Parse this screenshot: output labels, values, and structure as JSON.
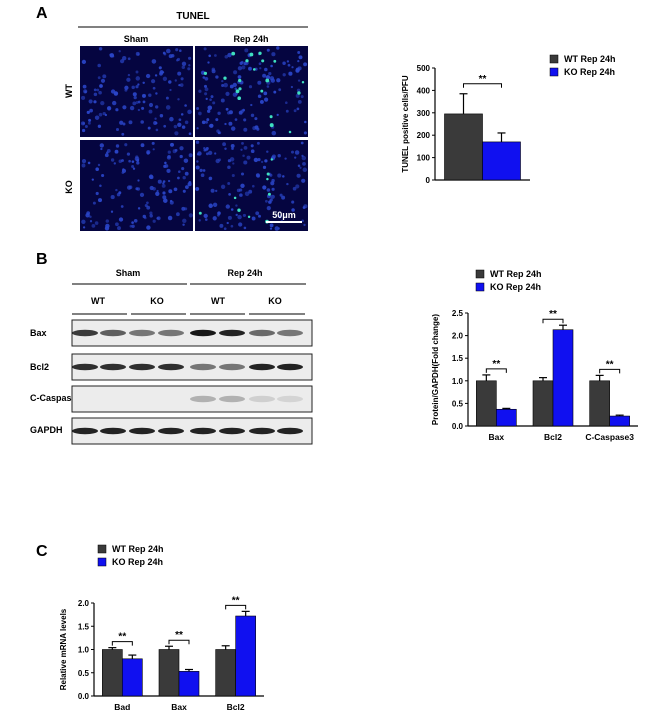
{
  "panels": {
    "a": "A",
    "b": "B",
    "c": "C"
  },
  "colors": {
    "wt": "#3a3a3a",
    "ko": "#1010f0",
    "micrograph_bg": "#050540",
    "nuclei": "#2a45c8",
    "tunel_pos": "#3ee0c0"
  },
  "tunel": {
    "header": "TUNEL",
    "col_labels": [
      "Sham",
      "Rep 24h"
    ],
    "row_labels": [
      "WT",
      "KO"
    ],
    "scale_bar": "50μm"
  },
  "blot": {
    "group_labels": [
      "Sham",
      "Rep 24h"
    ],
    "genotype_labels": [
      "WT",
      "KO",
      "WT",
      "KO"
    ],
    "rows": [
      "Bax",
      "Bcl2",
      "C-Caspase3",
      "GAPDH"
    ],
    "band_intensity": {
      "Bax": [
        0.75,
        0.6,
        0.5,
        0.5,
        0.9,
        0.85,
        0.55,
        0.5
      ],
      "Bcl2": [
        0.8,
        0.8,
        0.8,
        0.8,
        0.5,
        0.5,
        0.85,
        0.85
      ],
      "C-Caspase3": [
        0.0,
        0.0,
        0.0,
        0.0,
        0.25,
        0.25,
        0.12,
        0.1
      ],
      "GAPDH": [
        0.85,
        0.85,
        0.85,
        0.85,
        0.85,
        0.85,
        0.85,
        0.85
      ]
    }
  },
  "chart_data": [
    {
      "id": "A",
      "type": "bar",
      "categories": [
        ""
      ],
      "series": [
        {
          "name": "WT Rep 24h",
          "values": [
            295
          ],
          "errors": [
            90
          ]
        },
        {
          "name": "KO Rep 24h",
          "values": [
            170
          ],
          "errors": [
            40
          ]
        }
      ],
      "ylabel": "TUNEL positive cells/PFU",
      "ylim": [
        0,
        500
      ],
      "yticks": [
        0,
        100,
        200,
        300,
        400,
        500
      ],
      "significance": [
        "**"
      ],
      "legend": "top-right"
    },
    {
      "id": "B",
      "type": "bar",
      "categories": [
        "Bax",
        "Bcl2",
        "C-Caspase3"
      ],
      "series": [
        {
          "name": "WT Rep 24h",
          "values": [
            1.0,
            1.0,
            1.0
          ],
          "errors": [
            0.13,
            0.07,
            0.12
          ]
        },
        {
          "name": "KO Rep 24h",
          "values": [
            0.37,
            2.13,
            0.22
          ],
          "errors": [
            0.02,
            0.1,
            0.02
          ]
        }
      ],
      "ylabel": "Protein/GAPDH(Fold change)",
      "ylim": [
        0,
        2.5
      ],
      "yticks": [
        0.0,
        0.5,
        1.0,
        1.5,
        2.0,
        2.5
      ],
      "significance": [
        "**",
        "**",
        "**"
      ],
      "legend": "top-left"
    },
    {
      "id": "C",
      "type": "bar",
      "categories": [
        "Bad",
        "Bax",
        "Bcl2"
      ],
      "series": [
        {
          "name": "WT Rep 24h",
          "values": [
            1.0,
            1.0,
            1.0
          ],
          "errors": [
            0.04,
            0.07,
            0.08
          ]
        },
        {
          "name": "KO Rep 24h",
          "values": [
            0.8,
            0.53,
            1.72
          ],
          "errors": [
            0.08,
            0.04,
            0.1
          ]
        }
      ],
      "ylabel": "Relative mRNA levels",
      "ylim": [
        0,
        2.0
      ],
      "yticks": [
        0.0,
        0.5,
        1.0,
        1.5,
        2.0
      ],
      "significance": [
        "**",
        "**",
        "**"
      ],
      "legend": "top-left"
    }
  ]
}
